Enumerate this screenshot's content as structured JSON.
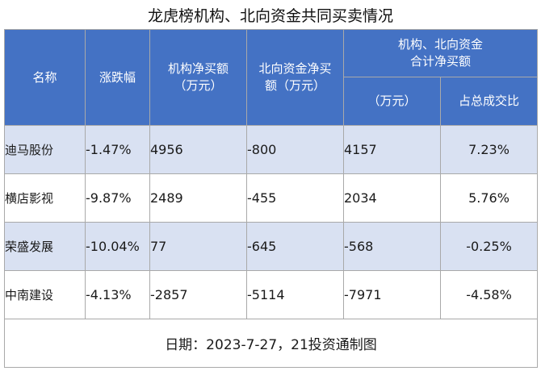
{
  "title": "龙虎榜机构、北向资金共同买卖情况",
  "headers": {
    "name": "名称",
    "change": "涨跌幅",
    "inst_line1": "机构净买额",
    "inst_line2": "（万元）",
    "north_line1": "北向资金净买",
    "north_line2": "额（万元）",
    "combined_line1": "机构、北向资金",
    "combined_line2": "合计净买额",
    "combined_sub_amount": "（万元）",
    "combined_sub_ratio": "占总成交比"
  },
  "rows": [
    {
      "name": "迪马股份",
      "change": "-1.47%",
      "inst": "4956",
      "north": "-800",
      "total": "4157",
      "ratio": "7.23%"
    },
    {
      "name": "横店影视",
      "change": "-9.87%",
      "inst": "2489",
      "north": "-455",
      "total": "2034",
      "ratio": "5.76%"
    },
    {
      "name": "荣盛发展",
      "change": "-10.04%",
      "inst": "77",
      "north": "-645",
      "total": "-568",
      "ratio": "-0.25%"
    },
    {
      "name": "中南建设",
      "change": "-4.13%",
      "inst": "-2857",
      "north": "-5114",
      "total": "-7971",
      "ratio": "-4.58%"
    }
  ],
  "footer": "日期：2023-7-27，21投资通制图",
  "colors": {
    "header_bg": "#4472c4",
    "stripe_bg": "#d9e1f2",
    "border": "#a9a9a9"
  }
}
